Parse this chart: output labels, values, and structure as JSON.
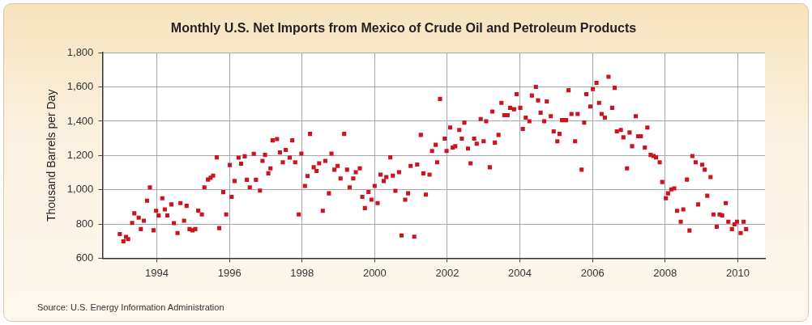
{
  "chart_data": {
    "type": "scatter",
    "title": "Monthly U.S. Net Imports from Mexico of Crude Oil and Petroleum Products",
    "ylabel": "Thousand Barrels per Day",
    "annotations": [
      "Source: U.S. Energy Information Administration"
    ],
    "x": [
      1992.98,
      1993.08,
      1993.15,
      1993.21,
      1993.32,
      1993.38,
      1993.5,
      1993.56,
      1993.64,
      1993.73,
      1993.81,
      1993.91,
      1993.98,
      1994.05,
      1994.15,
      1994.22,
      1994.29,
      1994.4,
      1994.47,
      1994.57,
      1994.65,
      1994.75,
      1994.82,
      1994.9,
      1994.98,
      1995.06,
      1995.14,
      1995.24,
      1995.31,
      1995.41,
      1995.48,
      1995.55,
      1995.65,
      1995.72,
      1995.83,
      1995.91,
      1996.01,
      1996.06,
      1996.14,
      1996.25,
      1996.32,
      1996.42,
      1996.48,
      1996.56,
      1996.67,
      1996.73,
      1996.84,
      1996.91,
      1996.98,
      1997.07,
      1997.13,
      1997.19,
      1997.31,
      1997.39,
      1997.47,
      1997.55,
      1997.66,
      1997.73,
      1997.81,
      1997.91,
      1997.98,
      1998.08,
      1998.15,
      1998.22,
      1998.32,
      1998.4,
      1998.47,
      1998.57,
      1998.64,
      1998.74,
      1998.81,
      1998.89,
      1998.98,
      1999.06,
      1999.16,
      1999.24,
      1999.31,
      1999.41,
      1999.48,
      1999.59,
      1999.66,
      1999.73,
      1999.83,
      1999.91,
      2000.0,
      2000.08,
      2000.16,
      2000.25,
      2000.32,
      2000.43,
      2000.5,
      2000.57,
      2000.67,
      2000.74,
      2000.84,
      2000.92,
      2000.99,
      2001.09,
      2001.17,
      2001.27,
      2001.34,
      2001.41,
      2001.51,
      2001.58,
      2001.68,
      2001.72,
      2001.8,
      2001.93,
      2001.98,
      2002.08,
      2002.15,
      2002.22,
      2002.33,
      2002.4,
      2002.47,
      2002.57,
      2002.64,
      2002.74,
      2002.81,
      2002.92,
      2003.0,
      2003.07,
      2003.17,
      2003.24,
      2003.31,
      2003.41,
      2003.49,
      2003.57,
      2003.66,
      2003.73,
      2003.84,
      2003.91,
      2004.01,
      2004.08,
      2004.16,
      2004.26,
      2004.33,
      2004.44,
      2004.5,
      2004.57,
      2004.67,
      2004.74,
      2004.85,
      2004.93,
      2005.03,
      2005.09,
      2005.16,
      2005.27,
      2005.34,
      2005.42,
      2005.52,
      2005.59,
      2005.7,
      2005.77,
      2005.83,
      2005.94,
      2006.01,
      2006.11,
      2006.18,
      2006.25,
      2006.34,
      2006.44,
      2006.54,
      2006.61,
      2006.67,
      2006.78,
      2006.85,
      2006.95,
      2007.02,
      2007.09,
      2007.19,
      2007.26,
      2007.33,
      2007.44,
      2007.51,
      2007.6,
      2007.68,
      2007.75,
      2007.85,
      2007.92,
      2008.02,
      2008.08,
      2008.17,
      2008.25,
      2008.33,
      2008.43,
      2008.5,
      2008.6,
      2008.67,
      2008.75,
      2008.84,
      2008.91,
      2009.02,
      2009.09,
      2009.16,
      2009.25,
      2009.33,
      2009.42,
      2009.5,
      2009.57,
      2009.67,
      2009.74,
      2009.84,
      2009.91,
      2009.98,
      2010.08,
      2010.16,
      2010.23
    ],
    "series": [
      {
        "color": "#cc1420",
        "values": [
          741,
          699,
          725,
          712,
          806,
          862,
          837,
          770,
          819,
          936,
          1014,
          763,
          877,
          850,
          950,
          885,
          850,
          914,
          805,
          747,
          922,
          819,
          906,
          770,
          763,
          770,
          878,
          856,
          1014,
          1059,
          1070,
          1082,
          1189,
          776,
          986,
          856,
          1144,
          958,
          1051,
          1187,
          1152,
          1195,
          1058,
          1014,
          1210,
          1058,
          995,
          1168,
          1203,
          1096,
          1125,
          1288,
          1296,
          1218,
          1160,
          1232,
          1187,
          1288,
          1160,
          856,
          1211,
          1022,
          1080,
          1326,
          1131,
          1109,
          1154,
          877,
          1168,
          979,
          1211,
          1117,
          1139,
          1066,
          1326,
          1117,
          1014,
          1066,
          1102,
          1125,
          958,
          893,
          987,
          942,
          1022,
          922,
          1088,
          1051,
          1074,
          1189,
          1082,
          994,
          1102,
          733,
          942,
          979,
          1139,
          726,
          1147,
          1320,
          1096,
          971,
          1088,
          1226,
          1262,
          1160,
          1530,
          1298,
          1226,
          1363,
          1246,
          1254,
          1349,
          1298,
          1392,
          1240,
          1154,
          1298,
          1269,
          1413,
          1283,
          1400,
          1131,
          1456,
          1275,
          1320,
          1507,
          1435,
          1435,
          1478,
          1470,
          1558,
          1478,
          1355,
          1421,
          1400,
          1550,
          1600,
          1522,
          1450,
          1400,
          1515,
          1429,
          1341,
          1283,
          1326,
          1406,
          1406,
          1581,
          1442,
          1283,
          1442,
          1117,
          1392,
          1558,
          1486,
          1587,
          1624,
          1507,
          1442,
          1421,
          1659,
          1478,
          1595,
          1341,
          1349,
          1306,
          1125,
          1334,
          1254,
          1429,
          1312,
          1312,
          1246,
          1363,
          1203,
          1197,
          1189,
          1160,
          1045,
          950,
          979,
          1002,
          1008,
          877,
          813,
          885,
          1059,
          762,
          1197,
          1160,
          914,
          1146,
          1117,
          965,
          1074,
          856,
          784,
          856,
          850,
          922,
          813,
          770,
          798,
          813,
          747,
          813,
          770
        ]
      }
    ],
    "xlim": [
      1992.5,
      2010.75
    ],
    "xticks": [
      1994,
      1996,
      1998,
      2000,
      2002,
      2004,
      2006,
      2008,
      2010
    ],
    "ylim": [
      600,
      1800
    ],
    "yticks": [
      600,
      800,
      {
        "value": 1000,
        "label": "1,000"
      },
      {
        "value": 1200,
        "label": "1,200"
      },
      {
        "value": 1400,
        "label": "1,400"
      },
      {
        "value": 1600,
        "label": "1,600"
      },
      {
        "value": 1800,
        "label": "1,800"
      }
    ],
    "grid": true,
    "marker": "square"
  }
}
